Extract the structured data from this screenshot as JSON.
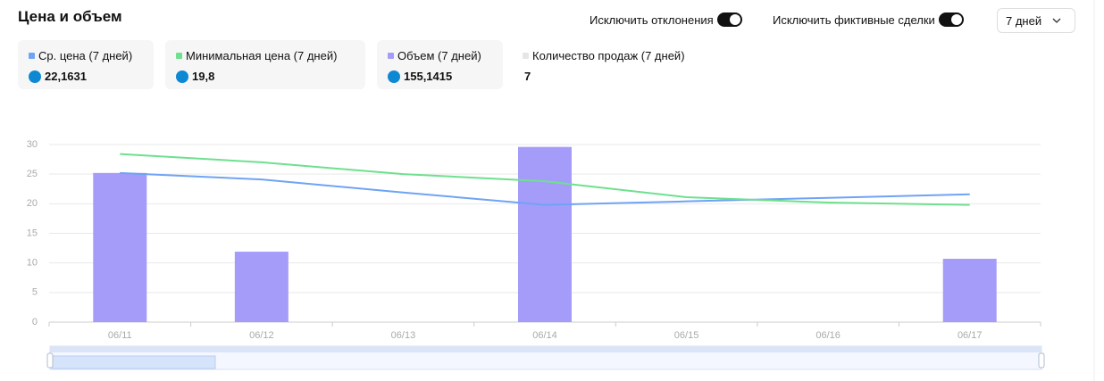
{
  "header": {
    "title": "Цена и объем",
    "toggles": [
      "Исключить отклонения",
      "Исключить фиктивные сделки"
    ],
    "period": "7 дней"
  },
  "count": {
    "label": "Количество продаж (7 дней)",
    "value": "7",
    "color": "#e6e6e6"
  },
  "chart_data": {
    "type": "bar",
    "categories": [
      "06/11",
      "06/12",
      "06/13",
      "06/14",
      "06/15",
      "06/16",
      "06/17"
    ],
    "series": [
      {
        "name": "Ср. цена (7 дней)",
        "total": "22,1631",
        "color": "#6fa3f5",
        "type": "line",
        "values": [
          25.2,
          24.1,
          21.9,
          19.8,
          20.4,
          21.0,
          21.6
        ]
      },
      {
        "name": "Минимальная цена (7 дней)",
        "total": "19,8",
        "color": "#6ee08e",
        "type": "line",
        "values": [
          28.4,
          27.0,
          25.0,
          23.8,
          21.1,
          20.2,
          19.8
        ]
      },
      {
        "name": "Объем (7 дней)",
        "total": "155,1415",
        "color": "#a59cfa",
        "type": "bar",
        "values": [
          25.2,
          11.9,
          null,
          29.6,
          null,
          null,
          10.7
        ]
      }
    ],
    "ylim": [
      0,
      30
    ],
    "yticks": [
      0,
      5,
      10,
      15,
      20,
      25,
      30
    ],
    "grid": true
  }
}
